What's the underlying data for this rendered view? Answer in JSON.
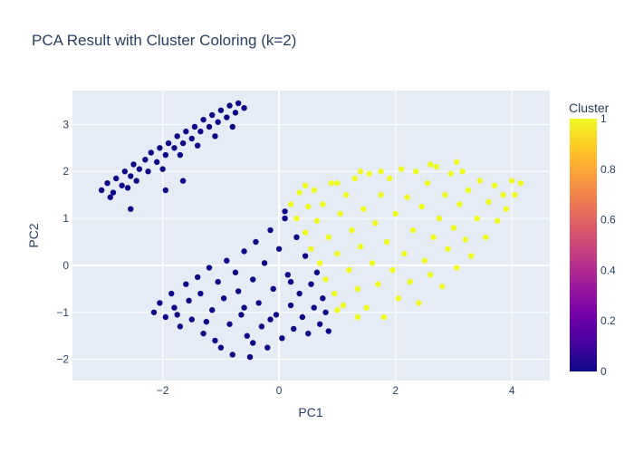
{
  "chart_data": {
    "type": "scatter",
    "title": "PCA Result with Cluster Coloring (k=2)",
    "xlabel": "PC1",
    "ylabel": "PC2",
    "xlim": [
      -3.55,
      4.65
    ],
    "ylim": [
      -2.45,
      3.72
    ],
    "xticks": [
      -2,
      0,
      2,
      4
    ],
    "yticks": [
      -2,
      -1,
      0,
      1,
      2,
      3
    ],
    "xtick_labels": [
      "−2",
      "0",
      "2",
      "4"
    ],
    "ytick_labels": [
      "−2",
      "−1",
      "0",
      "1",
      "2",
      "3"
    ],
    "grid": true,
    "colorbar": {
      "title": "Cluster",
      "range": [
        0,
        1
      ],
      "ticks": [
        0,
        0.2,
        0.4,
        0.6,
        0.8,
        1
      ],
      "tick_labels": [
        "0",
        "0.2",
        "0.4",
        "0.6",
        "0.8",
        "1"
      ],
      "colorscale": [
        "#0d0887",
        "#46039f",
        "#7201a8",
        "#9c179e",
        "#bd3786",
        "#d8576b",
        "#ed7953",
        "#fb9f3a",
        "#fdca26",
        "#f0f921"
      ]
    },
    "series": [
      {
        "cluster": 0,
        "color": "#0d0887",
        "points": [
          [
            -3.05,
            1.6
          ],
          [
            -2.95,
            1.75
          ],
          [
            -2.85,
            1.55
          ],
          [
            -2.8,
            1.85
          ],
          [
            -2.7,
            1.7
          ],
          [
            -2.65,
            2.0
          ],
          [
            -2.55,
            1.9
          ],
          [
            -2.5,
            2.15
          ],
          [
            -2.45,
            1.8
          ],
          [
            -2.4,
            2.05
          ],
          [
            -2.3,
            2.25
          ],
          [
            -2.25,
            2.0
          ],
          [
            -2.2,
            2.4
          ],
          [
            -2.1,
            2.2
          ],
          [
            -2.05,
            2.5
          ],
          [
            -1.95,
            2.35
          ],
          [
            -1.9,
            2.6
          ],
          [
            -1.8,
            2.5
          ],
          [
            -1.75,
            2.75
          ],
          [
            -1.65,
            2.6
          ],
          [
            -1.6,
            2.85
          ],
          [
            -1.5,
            2.7
          ],
          [
            -1.45,
            2.95
          ],
          [
            -1.35,
            2.85
          ],
          [
            -1.3,
            3.1
          ],
          [
            -1.2,
            2.95
          ],
          [
            -1.15,
            3.2
          ],
          [
            -1.05,
            3.05
          ],
          [
            -1.0,
            3.3
          ],
          [
            -0.9,
            3.15
          ],
          [
            -0.85,
            3.4
          ],
          [
            -0.75,
            3.25
          ],
          [
            -0.7,
            3.45
          ],
          [
            -0.6,
            3.35
          ],
          [
            -2.9,
            1.45
          ],
          [
            -2.6,
            1.65
          ],
          [
            -2.0,
            2.05
          ],
          [
            -1.7,
            2.35
          ],
          [
            -1.4,
            2.55
          ],
          [
            -1.1,
            2.75
          ],
          [
            -0.8,
            2.95
          ],
          [
            -2.55,
            1.2
          ],
          [
            -1.95,
            1.6
          ],
          [
            -1.65,
            1.8
          ],
          [
            -2.15,
            -1.0
          ],
          [
            -2.05,
            -0.8
          ],
          [
            -1.95,
            -1.1
          ],
          [
            -1.85,
            -0.6
          ],
          [
            -1.8,
            -0.9
          ],
          [
            -1.7,
            -1.3
          ],
          [
            -1.6,
            -0.4
          ],
          [
            -1.55,
            -0.75
          ],
          [
            -1.5,
            -1.15
          ],
          [
            -1.4,
            -0.25
          ],
          [
            -1.35,
            -0.6
          ],
          [
            -1.3,
            -1.45
          ],
          [
            -1.2,
            -0.05
          ],
          [
            -1.15,
            -0.95
          ],
          [
            -1.1,
            -1.6
          ],
          [
            -1.05,
            -0.35
          ],
          [
            -1.0,
            -1.75
          ],
          [
            -0.95,
            -0.7
          ],
          [
            -0.9,
            0.1
          ],
          [
            -0.85,
            -1.25
          ],
          [
            -0.8,
            -1.9
          ],
          [
            -0.75,
            -0.15
          ],
          [
            -0.7,
            -0.55
          ],
          [
            -0.65,
            -1.05
          ],
          [
            -0.6,
            0.3
          ],
          [
            -0.55,
            -1.5
          ],
          [
            -0.5,
            -1.95
          ],
          [
            -0.45,
            -0.3
          ],
          [
            -0.4,
            0.5
          ],
          [
            -0.35,
            -0.8
          ],
          [
            -0.3,
            -1.3
          ],
          [
            -0.25,
            0.05
          ],
          [
            -0.2,
            -1.75
          ],
          [
            -0.15,
            0.75
          ],
          [
            -0.1,
            -0.5
          ],
          [
            -0.05,
            -1.05
          ],
          [
            0.0,
            0.35
          ],
          [
            0.05,
            -1.55
          ],
          [
            0.1,
            1.0
          ],
          [
            0.15,
            -0.2
          ],
          [
            0.2,
            -0.85
          ],
          [
            0.25,
            -1.35
          ],
          [
            0.3,
            0.6
          ],
          [
            0.35,
            -0.6
          ],
          [
            0.4,
            -1.1
          ],
          [
            0.45,
            0.2
          ],
          [
            0.5,
            -1.45
          ],
          [
            0.55,
            -0.4
          ],
          [
            0.6,
            -0.9
          ],
          [
            0.65,
            -0.15
          ],
          [
            0.7,
            -1.25
          ],
          [
            0.75,
            -0.7
          ],
          [
            0.8,
            -1.0
          ],
          [
            0.85,
            -1.4
          ],
          [
            -1.25,
            -1.2
          ],
          [
            -0.6,
            -0.9
          ],
          [
            -0.15,
            -1.15
          ],
          [
            0.2,
            -0.35
          ],
          [
            0.1,
            1.15
          ],
          [
            -0.45,
            -1.65
          ],
          [
            -1.75,
            -1.05
          ]
        ]
      },
      {
        "cluster": 1,
        "color": "#f0f921",
        "points": [
          [
            0.2,
            1.3
          ],
          [
            0.3,
            1.0
          ],
          [
            0.35,
            1.55
          ],
          [
            0.45,
            0.7
          ],
          [
            0.5,
            1.25
          ],
          [
            0.55,
            0.35
          ],
          [
            0.6,
            1.6
          ],
          [
            0.65,
            0.95
          ],
          [
            0.7,
            0.05
          ],
          [
            0.75,
            1.3
          ],
          [
            0.8,
            -0.3
          ],
          [
            0.85,
            0.6
          ],
          [
            0.9,
            1.75
          ],
          [
            0.95,
            -0.6
          ],
          [
            1.0,
            0.25
          ],
          [
            1.05,
            1.1
          ],
          [
            1.1,
            -0.85
          ],
          [
            1.15,
            1.5
          ],
          [
            1.2,
            -0.1
          ],
          [
            1.25,
            0.75
          ],
          [
            1.3,
            1.85
          ],
          [
            1.35,
            -0.5
          ],
          [
            1.4,
            0.4
          ],
          [
            1.45,
            1.2
          ],
          [
            1.5,
            -0.9
          ],
          [
            1.55,
            1.95
          ],
          [
            1.6,
            0.05
          ],
          [
            1.65,
            0.9
          ],
          [
            1.7,
            -0.4
          ],
          [
            1.75,
            1.5
          ],
          [
            1.8,
            -1.1
          ],
          [
            1.85,
            0.5
          ],
          [
            1.9,
            1.85
          ],
          [
            1.95,
            -0.1
          ],
          [
            2.0,
            1.1
          ],
          [
            2.05,
            -0.7
          ],
          [
            2.1,
            2.05
          ],
          [
            2.15,
            0.25
          ],
          [
            2.2,
            1.45
          ],
          [
            2.25,
            -0.35
          ],
          [
            2.3,
            0.75
          ],
          [
            2.35,
            2.0
          ],
          [
            2.4,
            -0.8
          ],
          [
            2.45,
            1.25
          ],
          [
            2.5,
            0.1
          ],
          [
            2.55,
            1.75
          ],
          [
            2.6,
            -0.2
          ],
          [
            2.65,
            0.6
          ],
          [
            2.7,
            2.1
          ],
          [
            2.75,
            1.0
          ],
          [
            2.8,
            -0.45
          ],
          [
            2.85,
            1.5
          ],
          [
            2.9,
            0.35
          ],
          [
            2.95,
            1.95
          ],
          [
            3.0,
            0.8
          ],
          [
            3.05,
            -0.05
          ],
          [
            3.1,
            1.3
          ],
          [
            3.15,
            2.0
          ],
          [
            3.2,
            0.55
          ],
          [
            3.25,
            1.6
          ],
          [
            3.3,
            0.2
          ],
          [
            3.4,
            1.0
          ],
          [
            3.45,
            1.8
          ],
          [
            3.55,
            0.6
          ],
          [
            3.6,
            1.35
          ],
          [
            3.7,
            1.7
          ],
          [
            3.75,
            0.95
          ],
          [
            3.85,
            1.5
          ],
          [
            3.9,
            1.2
          ],
          [
            4.0,
            1.8
          ],
          [
            4.05,
            1.5
          ],
          [
            4.15,
            1.75
          ],
          [
            1.0,
            1.75
          ],
          [
            1.4,
            2.0
          ],
          [
            1.0,
            -0.95
          ],
          [
            1.35,
            -1.1
          ],
          [
            2.6,
            2.15
          ],
          [
            3.05,
            2.2
          ],
          [
            1.75,
            2.0
          ],
          [
            0.45,
            1.7
          ]
        ]
      }
    ]
  }
}
